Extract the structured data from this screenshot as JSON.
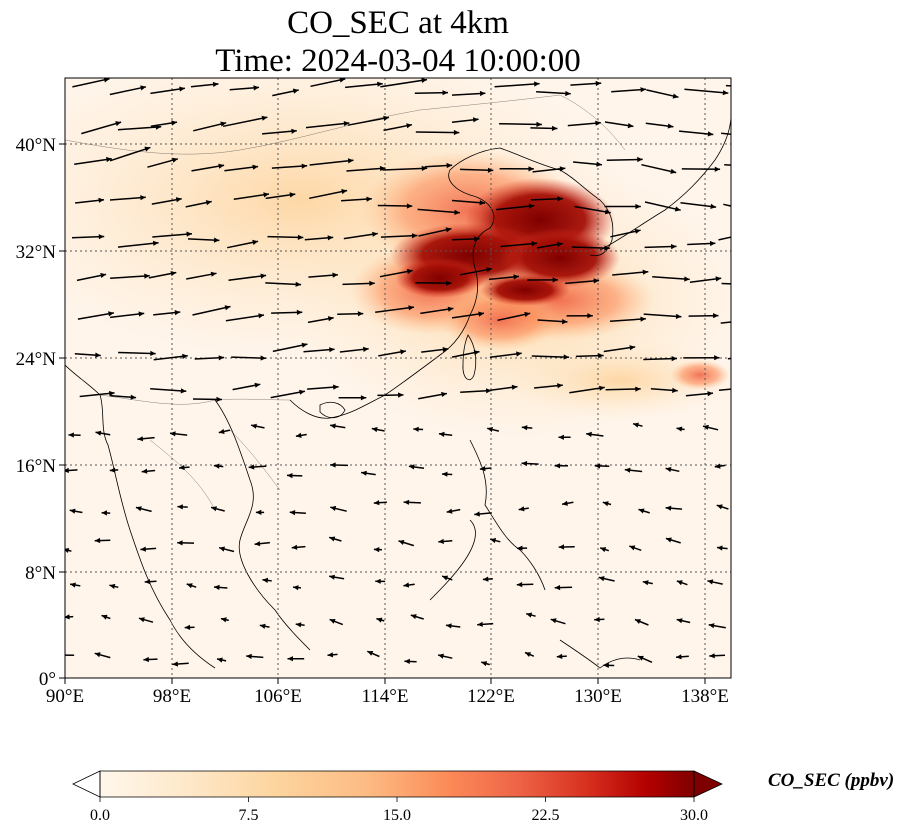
{
  "title": {
    "line1": "CO_SEC at 4km",
    "line2": "Time: 2024-03-04 10:00:00"
  },
  "map": {
    "lon_range": [
      90,
      140
    ],
    "lat_range": [
      0,
      40.7
    ],
    "lon_ticks": [
      "90°E",
      "98°E",
      "106°E",
      "114°E",
      "122°E",
      "130°E",
      "138°E"
    ],
    "lat_ticks": [
      "0°",
      "8°N",
      "16°N",
      "24°N",
      "32°N",
      "40°N"
    ],
    "gridlines": true,
    "field_variable": "CO_SEC",
    "vectors": "wind",
    "colors": {
      "low": "#fff5eb",
      "mid": "#fdae6b",
      "high": "#7f0000",
      "vector": "#000000",
      "coast": "#000000",
      "grid": "#555555"
    }
  },
  "colorbar": {
    "label": "CO_SEC (ppbv)",
    "ticks": [
      "0.0",
      "7.5",
      "15.0",
      "22.5",
      "30.0"
    ],
    "range": [
      0,
      30
    ],
    "extend": "both",
    "colormap": "OrRd"
  }
}
